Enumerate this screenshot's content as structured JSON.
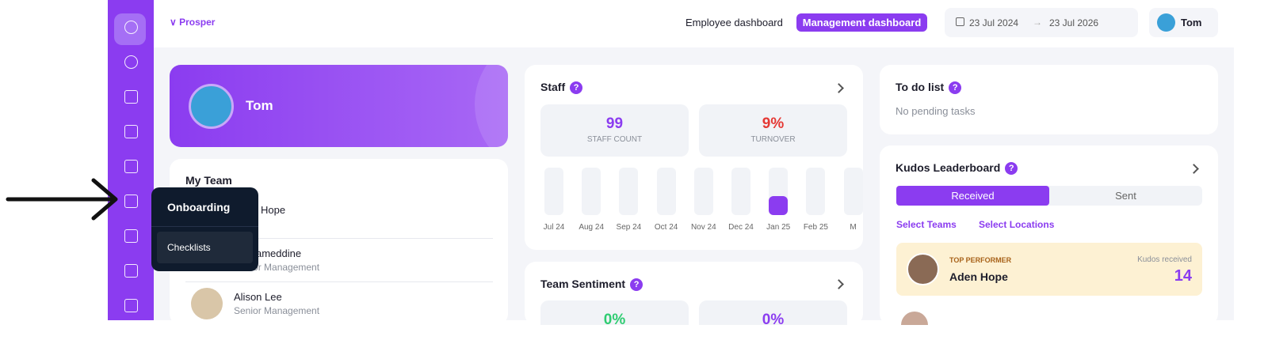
{
  "header": {
    "brand": "Prosper",
    "tabs": [
      "Employee dashboard",
      "Management dashboard"
    ],
    "date_from": "23 Jul 2024",
    "date_to": "23 Jul 2026",
    "user": "Tom"
  },
  "sidebar_popup": {
    "title": "Onboarding",
    "items": [
      "Checklists"
    ]
  },
  "profile": {
    "name": "Tom"
  },
  "my_team": {
    "title": "My Team",
    "members": [
      {
        "name": "Aden Hope"
      },
      {
        "name": "ameddine",
        "role": "Senior Management"
      },
      {
        "name": "Alison Lee",
        "role": "Senior Management"
      }
    ]
  },
  "staff": {
    "title": "Staff",
    "help": "?",
    "stats": [
      {
        "value": 99,
        "label": "STAFF COUNT"
      },
      {
        "value": "9%",
        "label": "TURNOVER"
      }
    ],
    "months": [
      "Jul 24",
      "Aug 24",
      "Sep 24",
      "Oct 24",
      "Nov 24",
      "Dec 24",
      "Jan 25",
      "Feb 25",
      "M"
    ]
  },
  "team_sentiment": {
    "title": "Team Sentiment",
    "help": "?",
    "stats": [
      "0%",
      "0%"
    ]
  },
  "todo": {
    "title": "To do list",
    "help": "?",
    "empty": "No pending tasks"
  },
  "kudos": {
    "title": "Kudos Leaderboard",
    "help": "?",
    "tabs": [
      "Received",
      "Sent"
    ],
    "filters": [
      "Select Teams",
      "Select Locations"
    ],
    "top": {
      "badge": "TOP PERFORMER",
      "name": "Aden Hope",
      "count_label": "Kudos received",
      "count": 14
    }
  }
}
